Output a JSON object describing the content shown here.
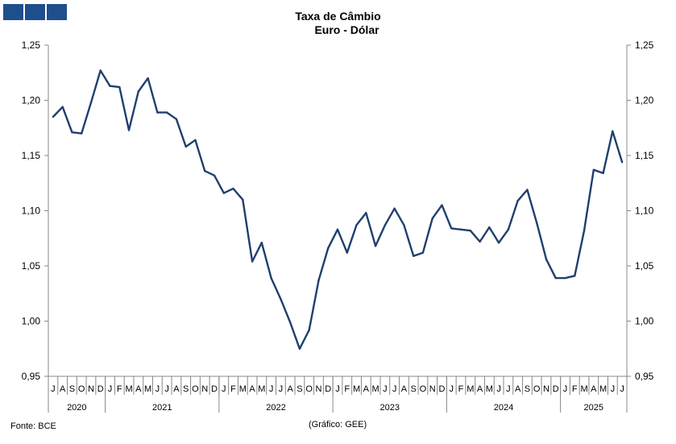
{
  "logo": {
    "color": "#1f4e8c",
    "squares": 3
  },
  "title": "Taxa de Câmbio",
  "subtitle": "Euro - Dólar",
  "source": "Fonte: BCE",
  "credit": "(Gráfico: GEE)",
  "chart_data": {
    "type": "line",
    "title": "Taxa de Câmbio",
    "subtitle": "Euro - Dólar",
    "y_left_ticks": [
      "1,25",
      "1,20",
      "1,15",
      "1,10",
      "1,05",
      "1,00",
      "0,95"
    ],
    "y_right_ticks": [
      "1,25",
      "1,20",
      "1,15",
      "1,10",
      "1,05",
      "1,00",
      "0,95"
    ],
    "ylim": [
      0.95,
      1.25
    ],
    "y_tick_values": [
      1.25,
      1.2,
      1.15,
      1.1,
      1.05,
      1.0,
      0.95
    ],
    "month_labels": [
      "J",
      "A",
      "S",
      "O",
      "N",
      "D",
      "J",
      "F",
      "M",
      "A",
      "M",
      "J",
      "J",
      "A",
      "S",
      "O",
      "N",
      "D",
      "J",
      "F",
      "M",
      "A",
      "M",
      "J",
      "J",
      "A",
      "S",
      "O",
      "N",
      "D",
      "J",
      "F",
      "M",
      "A",
      "M",
      "J",
      "J",
      "A",
      "S",
      "O",
      "N",
      "D",
      "J",
      "F",
      "M",
      "A",
      "M",
      "J",
      "J",
      "A",
      "S",
      "O",
      "N",
      "D",
      "J",
      "F",
      "M",
      "A",
      "M",
      "J",
      "J"
    ],
    "years": [
      {
        "label": "2020",
        "start": 0,
        "count": 6
      },
      {
        "label": "2021",
        "start": 6,
        "count": 12
      },
      {
        "label": "2022",
        "start": 18,
        "count": 12
      },
      {
        "label": "2023",
        "start": 30,
        "count": 12
      },
      {
        "label": "2024",
        "start": 42,
        "count": 12
      },
      {
        "label": "2025",
        "start": 54,
        "count": 7
      }
    ],
    "values": [
      1.185,
      1.194,
      1.171,
      1.17,
      1.198,
      1.227,
      1.213,
      1.212,
      1.173,
      1.208,
      1.22,
      1.189,
      1.189,
      1.183,
      1.158,
      1.164,
      1.136,
      1.132,
      1.116,
      1.12,
      1.11,
      1.054,
      1.071,
      1.039,
      1.02,
      0.999,
      0.975,
      0.992,
      1.037,
      1.066,
      1.083,
      1.062,
      1.087,
      1.098,
      1.068,
      1.087,
      1.102,
      1.087,
      1.059,
      1.062,
      1.093,
      1.105,
      1.084,
      1.083,
      1.082,
      1.072,
      1.085,
      1.071,
      1.083,
      1.109,
      1.119,
      1.089,
      1.056,
      1.039,
      1.039,
      1.041,
      1.082,
      1.137,
      1.134,
      1.172,
      1.144
    ],
    "series_color": "#1f3f6e",
    "grid": false
  }
}
